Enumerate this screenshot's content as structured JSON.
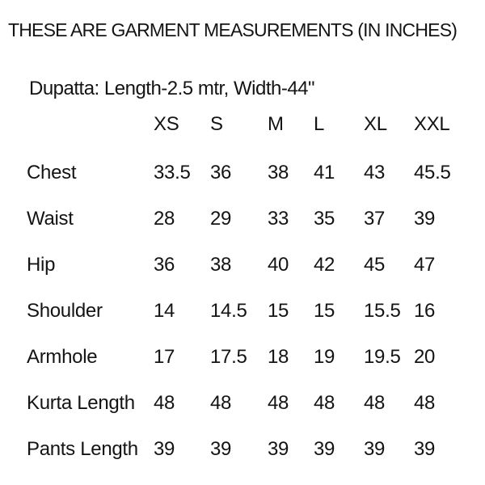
{
  "header": {
    "title": "THESE ARE GARMENT MEASUREMENTS (IN INCHES)",
    "dupatta_note": "Dupatta: Length-2.5 mtr, Width-44\""
  },
  "size_chart": {
    "sizes": [
      "XS",
      "S",
      "M",
      "L",
      "XL",
      "XXL"
    ],
    "rows": [
      {
        "label": "Chest",
        "values": [
          "33.5",
          "36",
          "38",
          "41",
          "43",
          "45.5"
        ]
      },
      {
        "label": "Waist",
        "values": [
          "28",
          "29",
          "33",
          "35",
          "37",
          "39"
        ]
      },
      {
        "label": "Hip",
        "values": [
          "36",
          "38",
          "40",
          "42",
          "45",
          "47"
        ]
      },
      {
        "label": "Shoulder",
        "values": [
          "14",
          "14.5",
          "15",
          "15",
          "15.5",
          "16"
        ]
      },
      {
        "label": "Armhole",
        "values": [
          "17",
          "17.5",
          "18",
          "19",
          "19.5",
          "20"
        ]
      },
      {
        "label": "Kurta Length",
        "values": [
          "48",
          "48",
          "48",
          "48",
          "48",
          "48"
        ]
      },
      {
        "label": "Pants Length",
        "values": [
          "39",
          "39",
          "39",
          "39",
          "39",
          "39"
        ]
      }
    ]
  },
  "colors": {
    "background": "#ffffff",
    "text": "#141414"
  }
}
